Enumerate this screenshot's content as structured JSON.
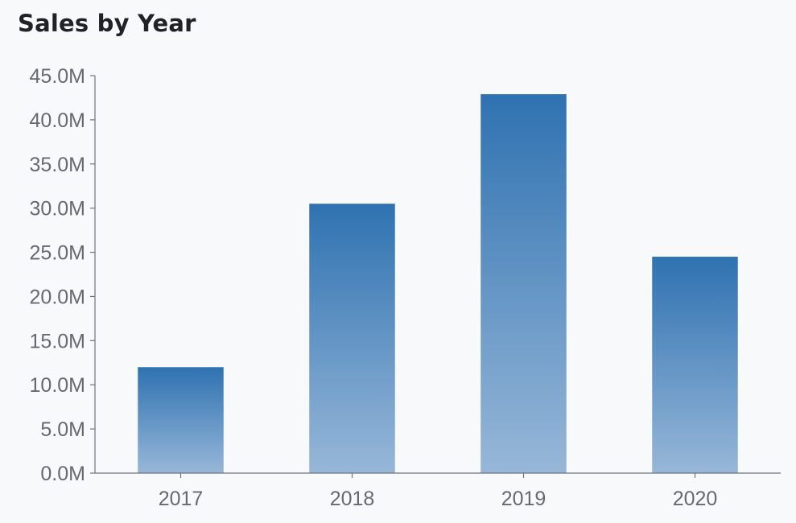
{
  "chart_data": {
    "type": "bar",
    "title": "Sales by Year",
    "xlabel": "",
    "ylabel": "",
    "categories": [
      "2017",
      "2018",
      "2019",
      "2020"
    ],
    "values": [
      12000000,
      30500000,
      42900000,
      24500000
    ],
    "ylim": [
      0,
      45000000
    ],
    "yticks": [
      0,
      5000000,
      10000000,
      15000000,
      20000000,
      25000000,
      30000000,
      35000000,
      40000000,
      45000000
    ],
    "ytick_labels": [
      "0.0M",
      "5.0M",
      "10.0M",
      "15.0M",
      "20.0M",
      "25.0M",
      "30.0M",
      "35.0M",
      "40.0M",
      "45.0M"
    ],
    "grid": false,
    "legend": "none",
    "colors": {
      "bar_top": "#2f72b1",
      "bar_bottom": "#97b7d8",
      "axis": "#6f7378",
      "text": "#666a70",
      "title": "#1f2228",
      "background": "#f8f9fb"
    }
  }
}
